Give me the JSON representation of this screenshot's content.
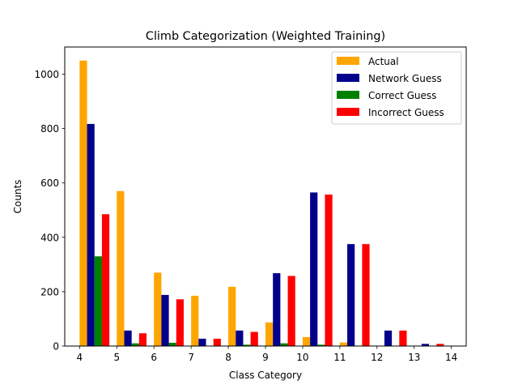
{
  "chart_data": {
    "type": "bar",
    "title": "Climb Categorization (Weighted Training)",
    "xlabel": "Class Category",
    "ylabel": "Counts",
    "xlim": [
      3.6,
      14.4
    ],
    "ylim": [
      0,
      1100
    ],
    "x_ticks": [
      4,
      5,
      6,
      7,
      8,
      9,
      10,
      11,
      12,
      13,
      14
    ],
    "y_ticks": [
      0,
      200,
      400,
      600,
      800,
      1000
    ],
    "grid": false,
    "legend_position": "upper right",
    "bar_width": 0.2,
    "categories": [
      4,
      5,
      6,
      7,
      8,
      9,
      10,
      11,
      12,
      13
    ],
    "series": [
      {
        "name": "Actual",
        "color": "#ffa500",
        "offset": 0.0,
        "values": [
          1050,
          570,
          270,
          185,
          218,
          87,
          33,
          13,
          0,
          0
        ]
      },
      {
        "name": "Network Guess",
        "color": "#00008b",
        "offset": 0.2,
        "values": [
          817,
          57,
          188,
          27,
          57,
          268,
          565,
          375,
          57,
          8
        ]
      },
      {
        "name": "Correct Guess",
        "color": "#008000",
        "offset": 0.4,
        "values": [
          330,
          10,
          12,
          0,
          5,
          10,
          5,
          0,
          0,
          0
        ]
      },
      {
        "name": "Incorrect Guess",
        "color": "#ff0000",
        "offset": 0.6,
        "values": [
          485,
          47,
          172,
          27,
          52,
          258,
          557,
          375,
          57,
          8
        ]
      }
    ]
  }
}
